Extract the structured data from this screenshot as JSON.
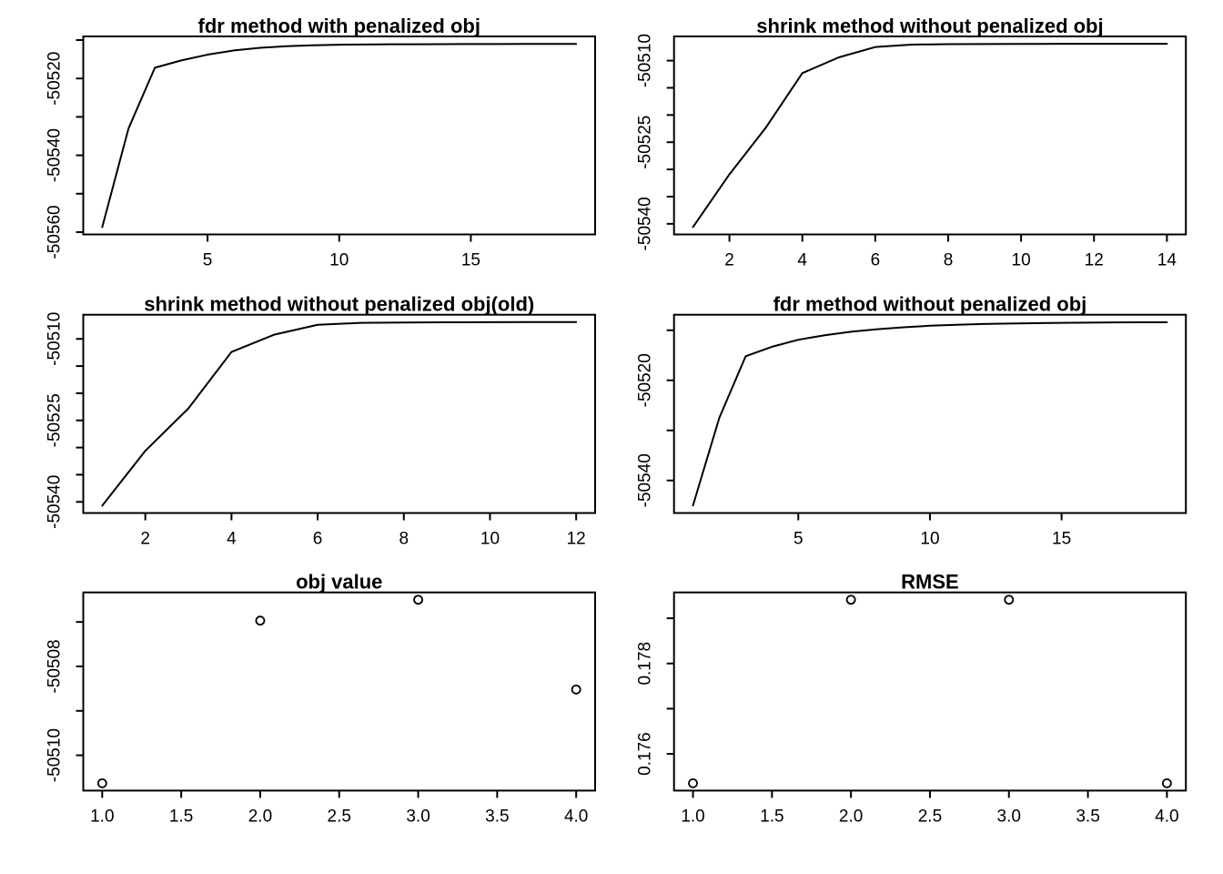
{
  "page": {
    "background": "#ffffff",
    "plot_color": "#000000",
    "description": "R base graphics figure: 3x2 grid of optimization convergence plots"
  },
  "chart_data": [
    {
      "type": "line",
      "position": "top-left",
      "title": "fdr method with penalized obj",
      "xlabel": "",
      "ylabel": "",
      "grid": false,
      "legend": null,
      "x": [
        1,
        2,
        3,
        4,
        5,
        6,
        7,
        8,
        9,
        10,
        11,
        12,
        13,
        14,
        15,
        16,
        17,
        18,
        19
      ],
      "y": [
        -50558.7,
        -50533.0,
        -50517.2,
        -50515.3,
        -50513.8,
        -50512.7,
        -50512.0,
        -50511.6,
        -50511.35,
        -50511.2,
        -50511.15,
        -50511.1,
        -50511.08,
        -50511.06,
        -50511.04,
        -50511.03,
        -50511.02,
        -50511.01,
        -50511.0
      ],
      "xlim": [
        0.28,
        19.72
      ],
      "ylim": [
        -50560.6,
        -50509.05
      ],
      "x_ticks": [
        {
          "v": 5,
          "label": "5"
        },
        {
          "v": 10,
          "label": "10"
        },
        {
          "v": 15,
          "label": "15"
        }
      ],
      "y_ticks": [
        {
          "v": -50560,
          "label": "-50560"
        },
        {
          "v": -50550,
          "label": ""
        },
        {
          "v": -50540,
          "label": "-50540"
        },
        {
          "v": -50530,
          "label": ""
        },
        {
          "v": -50520,
          "label": "-50520"
        },
        {
          "v": -50510,
          "label": ""
        }
      ]
    },
    {
      "type": "line",
      "position": "top-right",
      "title": "shrink method without penalized obj",
      "xlabel": "",
      "ylabel": "",
      "grid": false,
      "legend": null,
      "x": [
        1,
        2,
        3,
        4,
        5,
        6,
        7,
        8,
        9,
        10,
        11,
        12,
        13,
        14
      ],
      "y": [
        -50540.6,
        -50530.9,
        -50522.3,
        -50512.3,
        -50509.4,
        -50507.5,
        -50507.05,
        -50506.98,
        -50506.95,
        -50506.93,
        -50506.92,
        -50506.91,
        -50506.9,
        -50506.9
      ],
      "xlim": [
        0.48,
        14.52
      ],
      "ylim": [
        -50541.95,
        -50505.55
      ],
      "x_ticks": [
        {
          "v": 2,
          "label": "2"
        },
        {
          "v": 4,
          "label": "4"
        },
        {
          "v": 6,
          "label": "6"
        },
        {
          "v": 8,
          "label": "8"
        },
        {
          "v": 10,
          "label": "10"
        },
        {
          "v": 12,
          "label": "12"
        },
        {
          "v": 14,
          "label": "14"
        }
      ],
      "y_ticks": [
        {
          "v": -50540,
          "label": "-50540"
        },
        {
          "v": -50535,
          "label": ""
        },
        {
          "v": -50530,
          "label": ""
        },
        {
          "v": -50525,
          "label": "-50525"
        },
        {
          "v": -50520,
          "label": ""
        },
        {
          "v": -50515,
          "label": ""
        },
        {
          "v": -50510,
          "label": "-50510"
        }
      ]
    },
    {
      "type": "line",
      "position": "middle-left",
      "title": "shrink method without penalized obj(old)",
      "xlabel": "",
      "ylabel": "",
      "grid": false,
      "legend": null,
      "x": [
        1,
        2,
        3,
        4,
        5,
        6,
        7,
        8,
        9,
        10,
        11,
        12
      ],
      "y": [
        -50540.7,
        -50530.6,
        -50522.8,
        -50512.4,
        -50509.2,
        -50507.4,
        -50507.05,
        -50506.98,
        -50506.94,
        -50506.92,
        -50506.9,
        -50506.9
      ],
      "xlim": [
        0.56,
        12.44
      ],
      "ylim": [
        -50542.05,
        -50505.55
      ],
      "x_ticks": [
        {
          "v": 2,
          "label": "2"
        },
        {
          "v": 4,
          "label": "4"
        },
        {
          "v": 6,
          "label": "6"
        },
        {
          "v": 8,
          "label": "8"
        },
        {
          "v": 10,
          "label": "10"
        },
        {
          "v": 12,
          "label": "12"
        }
      ],
      "y_ticks": [
        {
          "v": -50540,
          "label": "-50540"
        },
        {
          "v": -50535,
          "label": ""
        },
        {
          "v": -50530,
          "label": ""
        },
        {
          "v": -50525,
          "label": "-50525"
        },
        {
          "v": -50520,
          "label": ""
        },
        {
          "v": -50515,
          "label": ""
        },
        {
          "v": -50510,
          "label": "-50510"
        }
      ]
    },
    {
      "type": "line",
      "position": "middle-right",
      "title": "fdr method without penalized obj",
      "xlabel": "",
      "ylabel": "",
      "grid": false,
      "legend": null,
      "x": [
        1,
        2,
        3,
        4,
        5,
        6,
        7,
        8,
        9,
        10,
        11,
        12,
        13,
        14,
        15,
        16,
        17,
        18,
        19
      ],
      "y": [
        -50545.0,
        -50527.5,
        -50515.2,
        -50513.3,
        -50511.9,
        -50511.0,
        -50510.3,
        -50509.8,
        -50509.4,
        -50509.1,
        -50508.9,
        -50508.75,
        -50508.65,
        -50508.58,
        -50508.52,
        -50508.47,
        -50508.44,
        -50508.41,
        -50508.4
      ],
      "xlim": [
        0.28,
        19.72
      ],
      "ylim": [
        -50546.5,
        -50506.9
      ],
      "x_ticks": [
        {
          "v": 5,
          "label": "5"
        },
        {
          "v": 10,
          "label": "10"
        },
        {
          "v": 15,
          "label": "15"
        }
      ],
      "y_ticks": [
        {
          "v": -50540,
          "label": "-50540"
        },
        {
          "v": -50530,
          "label": ""
        },
        {
          "v": -50520,
          "label": "-50520"
        },
        {
          "v": -50510,
          "label": ""
        }
      ]
    },
    {
      "type": "scatter",
      "position": "bottom-left",
      "title": "obj value",
      "xlabel": "",
      "ylabel": "",
      "grid": false,
      "legend": null,
      "x": [
        1,
        2,
        3,
        4
      ],
      "y": [
        -50510.63,
        -50506.97,
        -50506.5,
        -50508.52
      ],
      "xlim": [
        0.88,
        4.12
      ],
      "ylim": [
        -50510.795,
        -50506.335
      ],
      "x_ticks": [
        {
          "v": 1.0,
          "label": "1.0"
        },
        {
          "v": 1.5,
          "label": "1.5"
        },
        {
          "v": 2.0,
          "label": "2.0"
        },
        {
          "v": 2.5,
          "label": "2.5"
        },
        {
          "v": 3.0,
          "label": "3.0"
        },
        {
          "v": 3.5,
          "label": "3.5"
        },
        {
          "v": 4.0,
          "label": "4.0"
        }
      ],
      "y_ticks": [
        {
          "v": -50510,
          "label": "-50510"
        },
        {
          "v": -50509,
          "label": ""
        },
        {
          "v": -50508,
          "label": "-50508"
        },
        {
          "v": -50507,
          "label": ""
        }
      ]
    },
    {
      "type": "scatter",
      "position": "bottom-right",
      "title": "RMSE",
      "xlabel": "",
      "ylabel": "",
      "grid": false,
      "legend": null,
      "x": [
        1,
        2,
        3,
        4
      ],
      "y": [
        0.17535,
        0.17941,
        0.17941,
        0.17535
      ],
      "xlim": [
        0.88,
        4.12
      ],
      "ylim": [
        0.175188,
        0.179572
      ],
      "x_ticks": [
        {
          "v": 1.0,
          "label": "1.0"
        },
        {
          "v": 1.5,
          "label": "1.5"
        },
        {
          "v": 2.0,
          "label": "2.0"
        },
        {
          "v": 2.5,
          "label": "2.5"
        },
        {
          "v": 3.0,
          "label": "3.0"
        },
        {
          "v": 3.5,
          "label": "3.5"
        },
        {
          "v": 4.0,
          "label": "4.0"
        }
      ],
      "y_ticks": [
        {
          "v": 0.176,
          "label": "0.176"
        },
        {
          "v": 0.177,
          "label": ""
        },
        {
          "v": 0.178,
          "label": "0.178"
        },
        {
          "v": 0.179,
          "label": ""
        }
      ]
    }
  ]
}
